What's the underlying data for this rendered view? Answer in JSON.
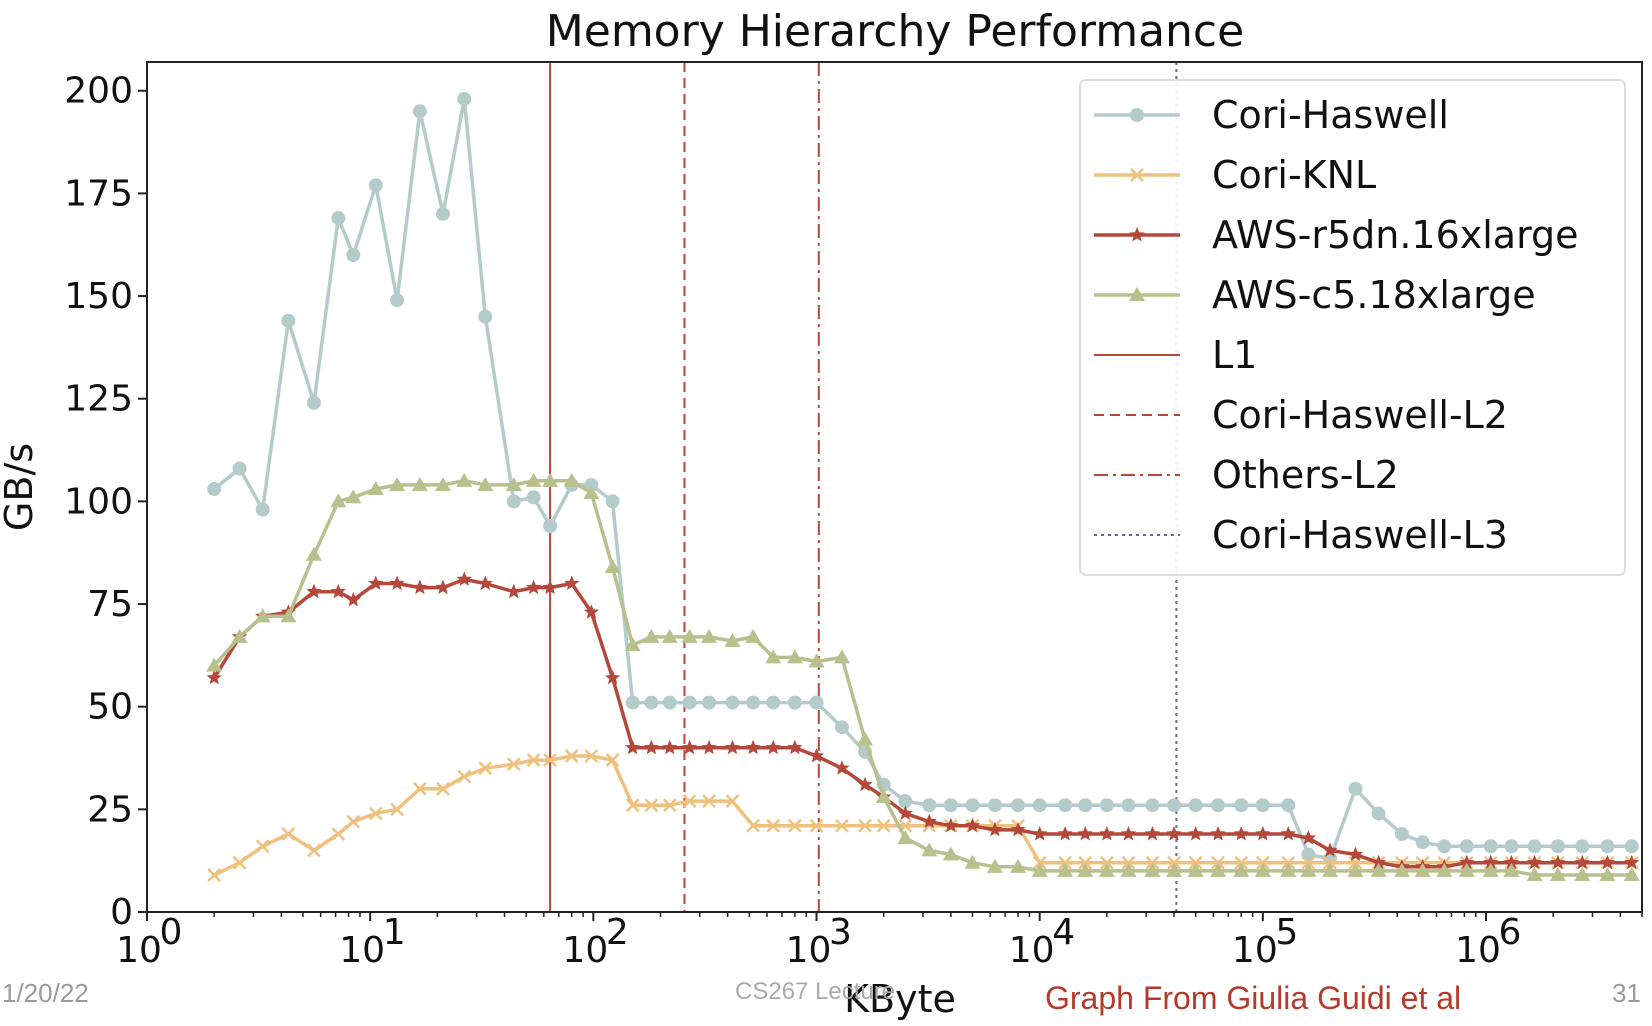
{
  "footer": {
    "date": "1/20/22",
    "course": "CS267 Lecture",
    "credit": "Graph From Giulia Guidi et al",
    "page": "31"
  },
  "chart_data": {
    "type": "line",
    "title": "Memory Hierarchy Performance",
    "xlabel": "KByte",
    "ylabel": "GB/s",
    "xscale": "log",
    "xlim": [
      1,
      5000000
    ],
    "ylim": [
      0,
      207
    ],
    "xticks": [
      {
        "value": 1,
        "base": "10",
        "exp": "0"
      },
      {
        "value": 10,
        "base": "10",
        "exp": "1"
      },
      {
        "value": 100,
        "base": "10",
        "exp": "2"
      },
      {
        "value": 1000,
        "base": "10",
        "exp": "3"
      },
      {
        "value": 10000,
        "base": "10",
        "exp": "4"
      },
      {
        "value": 100000,
        "base": "10",
        "exp": "5"
      },
      {
        "value": 1000000,
        "base": "10",
        "exp": "6"
      }
    ],
    "yticks": [
      0,
      25,
      50,
      75,
      100,
      125,
      150,
      175,
      200
    ],
    "grid": false,
    "legend_position": "top-right",
    "series": [
      {
        "name": "Cori-Haswell",
        "color": "#b3cccb",
        "marker": "circle",
        "x": [
          2,
          2.6,
          3.3,
          4.3,
          5.6,
          7.2,
          8.4,
          10.6,
          13.2,
          16.7,
          21.2,
          26.4,
          32.8,
          44,
          54,
          64,
          80,
          98,
          122,
          150,
          182,
          220,
          270,
          330,
          420,
          520,
          640,
          800,
          1000,
          1300,
          1650,
          2000,
          2500,
          3200,
          4000,
          5000,
          6300,
          8000,
          10000,
          13000,
          16000,
          20000,
          25000,
          32000,
          40000,
          50000,
          63000,
          80000,
          100000,
          130000,
          160000,
          200000,
          260000,
          330000,
          420000,
          520000,
          650000,
          820000,
          1050000,
          1300000,
          1650000,
          2100000,
          2700000,
          3500000,
          4500000
        ],
        "y": [
          103,
          108,
          98,
          144,
          124,
          169,
          160,
          177,
          149,
          195,
          170,
          198,
          145,
          100,
          101,
          94,
          104,
          104,
          100,
          51,
          51,
          51,
          51,
          51,
          51,
          51,
          51,
          51,
          51,
          45,
          39,
          31,
          27,
          26,
          26,
          26,
          26,
          26,
          26,
          26,
          26,
          26,
          26,
          26,
          26,
          26,
          26,
          26,
          26,
          26,
          14,
          13,
          30,
          24,
          19,
          17,
          16,
          16,
          16,
          16,
          16,
          16,
          16,
          16,
          16
        ]
      },
      {
        "name": "Cori-KNL",
        "color": "#eec17e",
        "marker": "x",
        "x": [
          2,
          2.6,
          3.3,
          4.3,
          5.6,
          7.2,
          8.4,
          10.6,
          13.2,
          16.7,
          21.2,
          26.4,
          32.8,
          44,
          54,
          64,
          80,
          98,
          122,
          150,
          182,
          220,
          270,
          330,
          420,
          520,
          640,
          800,
          1000,
          1300,
          1650,
          2000,
          2500,
          3200,
          4000,
          5000,
          6300,
          8000,
          10000,
          13000,
          16000,
          20000,
          25000,
          32000,
          40000,
          50000,
          63000,
          80000,
          100000,
          130000,
          160000,
          200000,
          260000,
          330000,
          420000,
          520000,
          650000,
          820000,
          1050000,
          1300000,
          1650000,
          2100000,
          2700000,
          3500000,
          4500000
        ],
        "y": [
          9,
          12,
          16,
          19,
          15,
          19,
          22,
          24,
          25,
          30,
          30,
          33,
          35,
          36,
          37,
          37,
          38,
          38,
          37,
          26,
          26,
          26,
          27,
          27,
          27,
          21,
          21,
          21,
          21,
          21,
          21,
          21,
          21,
          21,
          21,
          21,
          21,
          21,
          12,
          12,
          12,
          12,
          12,
          12,
          12,
          12,
          12,
          12,
          12,
          12,
          12,
          12,
          12,
          12,
          12,
          12,
          12,
          12,
          12,
          12,
          12,
          12,
          12,
          12,
          12
        ]
      },
      {
        "name": "AWS-r5dn.16xlarge",
        "color": "#b3483b",
        "marker": "star",
        "x": [
          2,
          2.6,
          3.3,
          4.3,
          5.6,
          7.2,
          8.4,
          10.6,
          13.2,
          16.7,
          21.2,
          26.4,
          32.8,
          44,
          54,
          64,
          80,
          98,
          122,
          150,
          182,
          220,
          270,
          330,
          420,
          520,
          640,
          800,
          1000,
          1300,
          1650,
          2000,
          2500,
          3200,
          4000,
          5000,
          6300,
          8000,
          10000,
          13000,
          16000,
          20000,
          25000,
          32000,
          40000,
          50000,
          63000,
          80000,
          100000,
          130000,
          160000,
          200000,
          260000,
          330000,
          420000,
          520000,
          650000,
          820000,
          1050000,
          1300000,
          1650000,
          2100000,
          2700000,
          3500000,
          4500000
        ],
        "y": [
          57,
          67,
          72,
          73,
          78,
          78,
          76,
          80,
          80,
          79,
          79,
          81,
          80,
          78,
          79,
          79,
          80,
          73,
          57,
          40,
          40,
          40,
          40,
          40,
          40,
          40,
          40,
          40,
          38,
          35,
          31,
          28,
          24,
          22,
          21,
          21,
          20,
          20,
          19,
          19,
          19,
          19,
          19,
          19,
          19,
          19,
          19,
          19,
          19,
          19,
          18,
          15,
          14,
          12,
          11,
          11,
          11,
          12,
          12,
          12,
          12,
          12,
          12,
          12,
          12
        ]
      },
      {
        "name": "AWS-c5.18xlarge",
        "color": "#b8c08e",
        "marker": "triangle",
        "x": [
          2,
          2.6,
          3.3,
          4.3,
          5.6,
          7.2,
          8.4,
          10.6,
          13.2,
          16.7,
          21.2,
          26.4,
          32.8,
          44,
          54,
          64,
          80,
          98,
          122,
          150,
          182,
          220,
          270,
          330,
          420,
          520,
          640,
          800,
          1000,
          1300,
          1650,
          2000,
          2500,
          3200,
          4000,
          5000,
          6300,
          8000,
          10000,
          13000,
          16000,
          20000,
          25000,
          32000,
          40000,
          50000,
          63000,
          80000,
          100000,
          130000,
          160000,
          200000,
          260000,
          330000,
          420000,
          520000,
          650000,
          820000,
          1050000,
          1300000,
          1650000,
          2100000,
          2700000,
          3500000,
          4500000
        ],
        "y": [
          60,
          67,
          72,
          72,
          87,
          100,
          101,
          103,
          104,
          104,
          104,
          105,
          104,
          104,
          105,
          105,
          105,
          102,
          84,
          65,
          67,
          67,
          67,
          67,
          66,
          67,
          62,
          62,
          61,
          62,
          42,
          28,
          18,
          15,
          14,
          12,
          11,
          11,
          10,
          10,
          10,
          10,
          10,
          10,
          10,
          10,
          10,
          10,
          10,
          10,
          10,
          10,
          10,
          10,
          10,
          10,
          10,
          10,
          10,
          10,
          9,
          9,
          9,
          9,
          9
        ]
      }
    ],
    "vlines": [
      {
        "name": "L1",
        "x": 64,
        "style": "solid",
        "color": "#b3483b"
      },
      {
        "name": "Cori-Haswell-L2",
        "x": 256,
        "style": "dashed",
        "color": "#b3483b"
      },
      {
        "name": "Others-L2",
        "x": 1024,
        "style": "dashdot",
        "color": "#b3483b"
      },
      {
        "name": "Cori-Haswell-L3",
        "x": 40960,
        "style": "dotted",
        "color": "#6a6a8a"
      }
    ]
  }
}
